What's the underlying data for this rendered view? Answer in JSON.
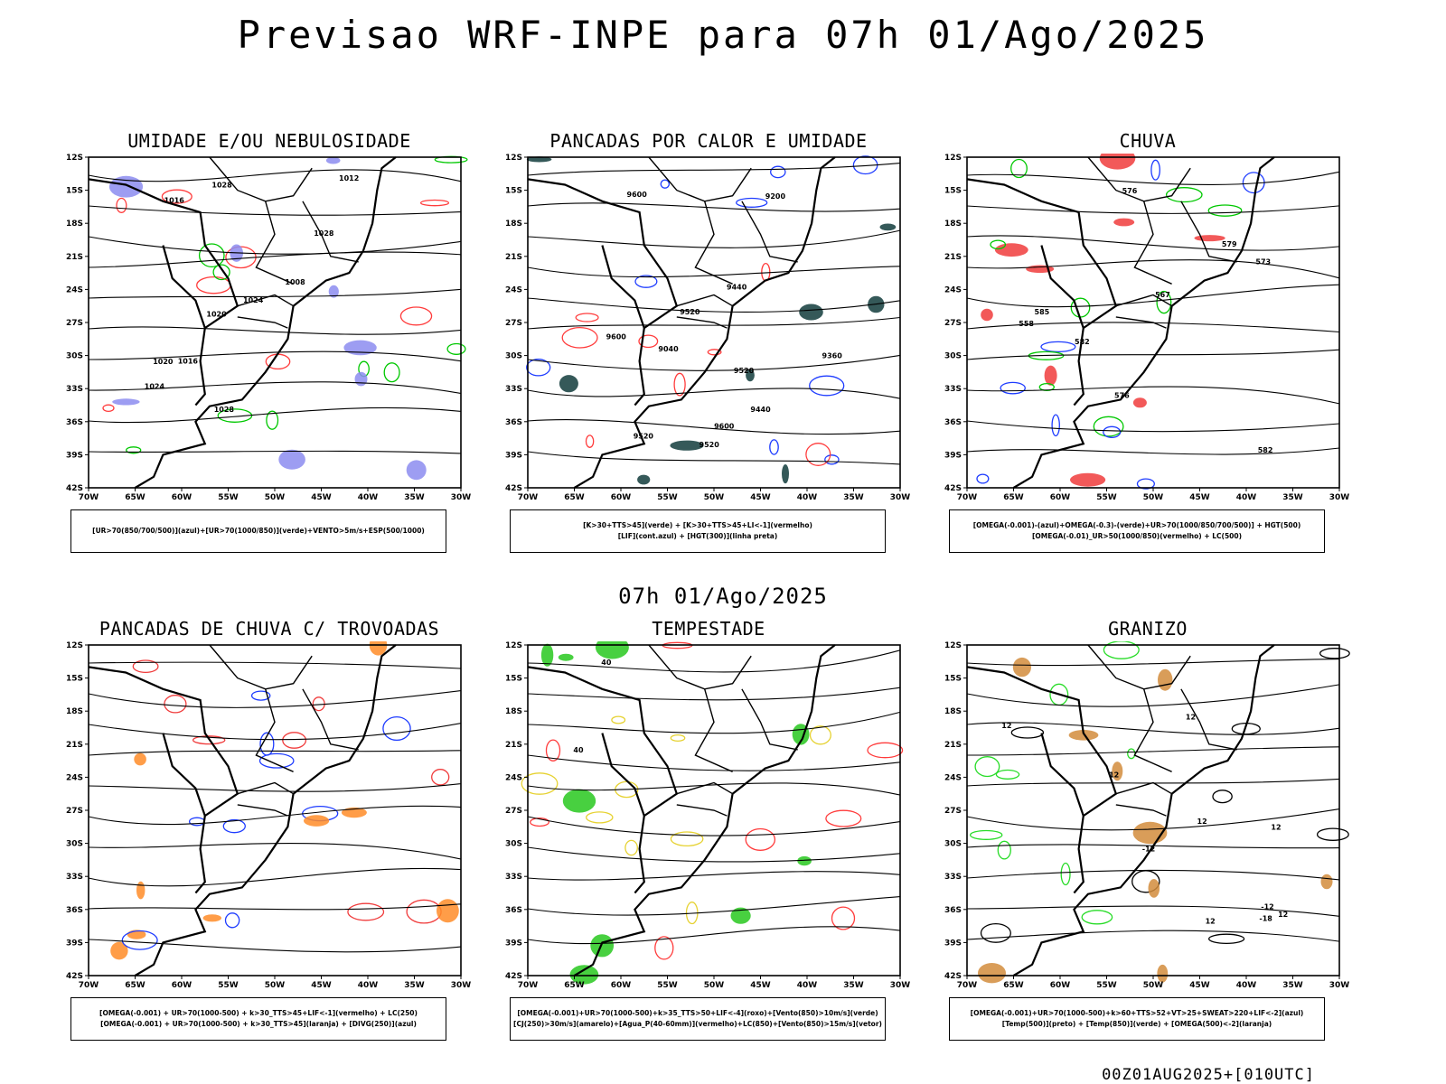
{
  "header": {
    "title": "Previsao WRF-INPE  para 07h 01/Ago/2025",
    "mid_title": "07h 01/Ago/2025",
    "footer": "00Z01AUG2025+[010UTC]"
  },
  "axes": {
    "lat_labels": [
      "12S",
      "15S",
      "18S",
      "21S",
      "24S",
      "27S",
      "30S",
      "33S",
      "36S",
      "39S",
      "42S"
    ],
    "lon_labels": [
      "70W",
      "65W",
      "60W",
      "55W",
      "50W",
      "45W",
      "40W",
      "35W",
      "30W"
    ]
  },
  "panels": [
    {
      "title": "UMIDADE E/OU NEBULOSIDADE",
      "legend": [
        "[UR>70(850/700/500)](azul)+[UR>70(1000/850)](verde)+VENTO>5m/s+ESP(500/1000)"
      ],
      "contour_labels": [
        "1016",
        "1020",
        "1024",
        "1028",
        "1028",
        "1024",
        "1016",
        "1008",
        "1012",
        "1020",
        "1028"
      ],
      "colors": {
        "fill": "#8c8cf0",
        "line1": "#00c800",
        "line2": "#ff3c3c"
      }
    },
    {
      "title": "PANCADAS POR CALOR E UMIDADE",
      "legend": [
        "[K>30+TTS>45](verde) + [K>30+TTS>45+LI<-1](vermelho)",
        "[LIF](cont.azul) + [HGT(300)](linha preta)"
      ],
      "contour_labels": [
        "9600",
        "9600",
        "9520",
        "9600",
        "9520",
        "9520",
        "9440",
        "9520",
        "9440",
        "9200",
        "9040",
        "9360"
      ],
      "colors": {
        "fill": "#123c3c",
        "line1": "#1e3cff",
        "line2": "#ff3c3c"
      }
    },
    {
      "title": "CHUVA",
      "legend": [
        "[OMEGA(-0.001)-(azul)+OMEGA(-0.3)-(verde)+UR>70(1000/850/700/500)] + HGT(500)",
        "[OMEGA(-0.01)_UR>50(1000/850)(vermelho) + LC(500)"
      ],
      "contour_labels": [
        "585",
        "579",
        "576",
        "582",
        "573",
        "567",
        "558",
        "582",
        "576"
      ],
      "colors": {
        "fill": "#f03c3c",
        "line1": "#00c800",
        "line2": "#1e3cff"
      }
    },
    {
      "title": "PANCADAS DE CHUVA C/ TROVOADAS",
      "legend": [
        "[OMEGA(-0.001) + UR>70(1000-500) + k>30_TTS>45+LIF<-1](vermelho) + LC(250)",
        "[OMEGA(-0.001) + UR>70(1000-500) + k>30_TTS>45](laranja) + [DIVG(250)](azul)"
      ],
      "contour_labels": [],
      "colors": {
        "fill": "#ff8c28",
        "line1": "#1e3cff",
        "line2": "#f03c3c"
      }
    },
    {
      "title": "TEMPESTADE",
      "legend": [
        "[OMEGA(-0.001)+UR>70(1000-500)+k>35_TTS>50+LIF<-4](roxo)+[Vento(850)>10m/s](verde)",
        "[CJ(250)>30m/s](amarelo)+[Agua_P(40-60mm)](vermelho)+LC(850)+[Vento(850)>15m/s](vetor)"
      ],
      "contour_labels": [
        "40",
        "40"
      ],
      "colors": {
        "fill": "#28c81e",
        "line1": "#e6d232",
        "line2": "#ff3c3c"
      }
    },
    {
      "title": "GRANIZO",
      "legend": [
        "[OMEGA(-0.001)+UR>70(1000-500)+k>60+TTS>52+VT>25+SWEAT>220+LIF<-2](azul)",
        "[Temp(500)](preto) + [Temp(850)](verde) + [OMEGA(500)<-2](laranja)"
      ],
      "contour_labels": [
        "12",
        "12",
        "12",
        "12",
        "12",
        "12",
        "-12",
        "-18",
        "12",
        "-12"
      ],
      "colors": {
        "fill": "#d28c3c",
        "line1": "#28dc28",
        "line2": "#000000"
      }
    }
  ]
}
